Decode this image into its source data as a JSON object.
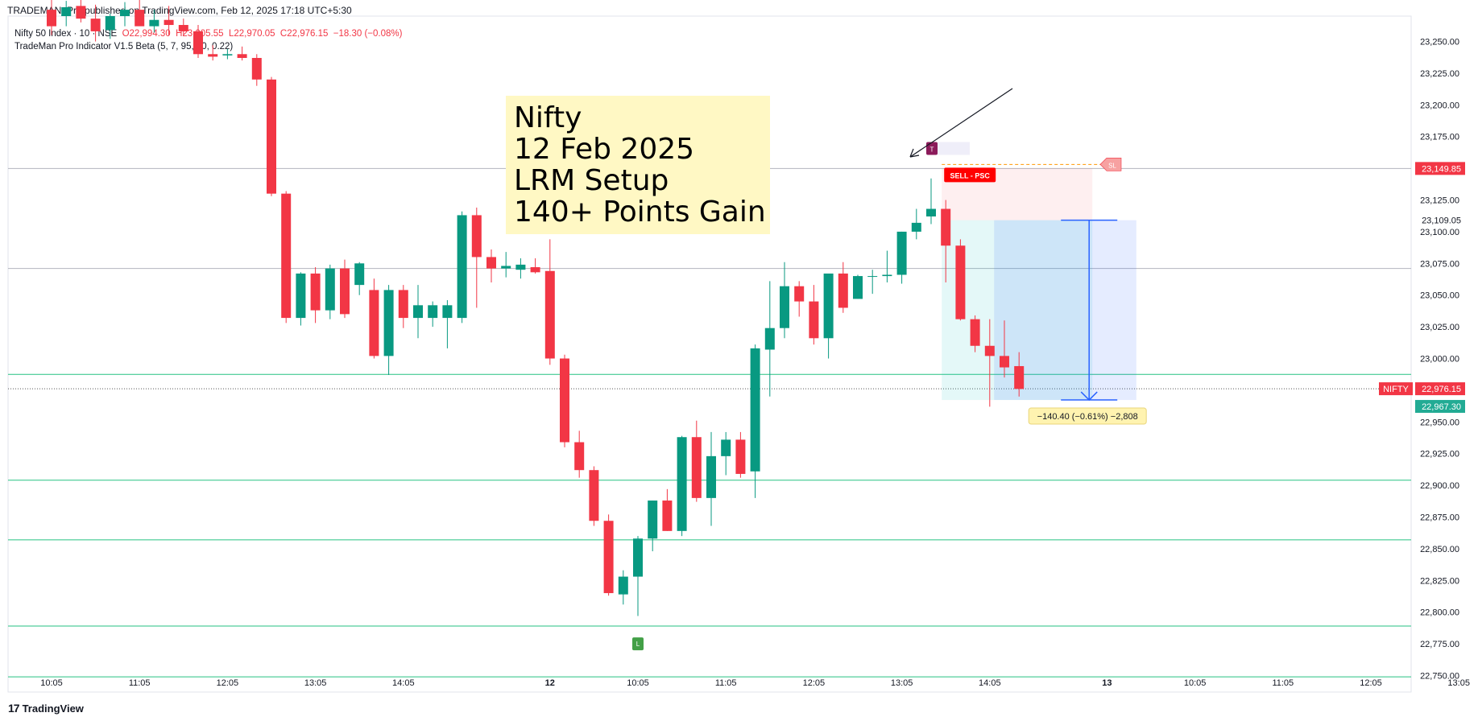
{
  "header": {
    "published": "TRADEMAN_Pro published on TradingView.com, Feb 12, 2025 17:18 UTC+5:30",
    "symbol_line": {
      "name": "Nifty 50 Index · 10 · NSE",
      "open": "O22,994.30",
      "high": "H23,005.55",
      "low": "L22,970.05",
      "close": "C22,976.15",
      "change": "−18.30 (−0.08%)"
    },
    "indicator": "TradeMan Pro Indicator V1.5 Beta (5, 7, 95, 10, 0.22)"
  },
  "annotation": {
    "lines": [
      "Nifty",
      "12 Feb 2025",
      "LRM Setup",
      "140+ Points Gain"
    ]
  },
  "markers": {
    "top_marker": "T",
    "low_marker": "L",
    "sell_label": "SELL - PSC",
    "sl_label": "SL",
    "measure_label": "−140.40 (−0.61%) −2,808"
  },
  "price_labels": {
    "sl_price": "23,149.85",
    "entry_price": "23,109.05",
    "symbol_tag": "NIFTY",
    "last_price": "22,976.15",
    "target_price": "22,967.30"
  },
  "footer": {
    "brand": "TradingView"
  },
  "colors": {
    "up": "#089981",
    "down": "#f23645",
    "grid_green": "#26c281",
    "measure_blue": "#2962ff"
  },
  "chart_data": {
    "type": "candlestick",
    "title": "",
    "yaxis": {
      "range": [
        22737,
        23270
      ],
      "ticks": [
        "23,250.00",
        "23,225.00",
        "23,200.00",
        "23,175.00",
        "23,125.00",
        "23,100.00",
        "23,075.00",
        "23,050.00",
        "23,025.00",
        "23,000.00",
        "22,950.00",
        "22,925.00",
        "22,900.00",
        "22,875.00",
        "22,850.00",
        "22,825.00",
        "22,800.00",
        "22,775.00",
        "22,750.00"
      ],
      "tick_values": [
        23250,
        23225,
        23200,
        23175,
        23125,
        23100,
        23075,
        23050,
        23025,
        23000,
        22950,
        22925,
        22900,
        22875,
        22850,
        22825,
        22800,
        22775,
        22750
      ]
    },
    "xaxis": {
      "ticks": [
        "10:05",
        "11:05",
        "12:05",
        "13:05",
        "14:05",
        "12",
        "10:05",
        "11:05",
        "12:05",
        "13:05",
        "14:05",
        "13",
        "10:05",
        "11:05",
        "12:05",
        "13:05"
      ],
      "tick_index": [
        0,
        6,
        12,
        18,
        24,
        34,
        40,
        46,
        52,
        58,
        64,
        72,
        78,
        84,
        90,
        96
      ]
    },
    "horizontal_levels": {
      "gray": [
        23149.85,
        23071
      ],
      "green": [
        22987.5,
        22904,
        22857,
        22789,
        22749
      ]
    },
    "candles": [
      {
        "o": 23275,
        "h": 23285,
        "l": 23255,
        "c": 23262
      },
      {
        "o": 23270,
        "h": 23282,
        "l": 23262,
        "c": 23277
      },
      {
        "o": 23278,
        "h": 23288,
        "l": 23265,
        "c": 23268
      },
      {
        "o": 23268,
        "h": 23279,
        "l": 23250,
        "c": 23258
      },
      {
        "o": 23259,
        "h": 23272,
        "l": 23252,
        "c": 23270
      },
      {
        "o": 23270,
        "h": 23281,
        "l": 23262,
        "c": 23275
      },
      {
        "o": 23275,
        "h": 23285,
        "l": 23266,
        "c": 23262
      },
      {
        "o": 23262,
        "h": 23275,
        "l": 23257,
        "c": 23267
      },
      {
        "o": 23267,
        "h": 23278,
        "l": 23255,
        "c": 23263
      },
      {
        "o": 23263,
        "h": 23268,
        "l": 23255,
        "c": 23258
      },
      {
        "o": 23258,
        "h": 23263,
        "l": 23237,
        "c": 23240
      },
      {
        "o": 23240,
        "h": 23247,
        "l": 23235,
        "c": 23238
      },
      {
        "o": 23239,
        "h": 23244,
        "l": 23236,
        "c": 23240
      },
      {
        "o": 23240,
        "h": 23246,
        "l": 23235,
        "c": 23237
      },
      {
        "o": 23237,
        "h": 23240,
        "l": 23215,
        "c": 23220
      },
      {
        "o": 23220,
        "h": 23222,
        "l": 23128,
        "c": 23130
      },
      {
        "o": 23130,
        "h": 23132,
        "l": 23028,
        "c": 23032
      },
      {
        "o": 23032,
        "h": 23068,
        "l": 23026,
        "c": 23067
      },
      {
        "o": 23067,
        "h": 23072,
        "l": 23028,
        "c": 23038
      },
      {
        "o": 23038,
        "h": 23074,
        "l": 23031,
        "c": 23071
      },
      {
        "o": 23071,
        "h": 23078,
        "l": 23032,
        "c": 23035
      },
      {
        "o": 23058,
        "h": 23076,
        "l": 23050,
        "c": 23075
      },
      {
        "o": 23054,
        "h": 23063,
        "l": 23000,
        "c": 23002
      },
      {
        "o": 23002,
        "h": 23058,
        "l": 22987,
        "c": 23054
      },
      {
        "o": 23054,
        "h": 23058,
        "l": 23024,
        "c": 23032
      },
      {
        "o": 23032,
        "h": 23058,
        "l": 23016,
        "c": 23042
      },
      {
        "o": 23032,
        "h": 23045,
        "l": 23025,
        "c": 23042
      },
      {
        "o": 23032,
        "h": 23046,
        "l": 23008,
        "c": 23042
      },
      {
        "o": 23032,
        "h": 23116,
        "l": 23028,
        "c": 23113
      },
      {
        "o": 23113,
        "h": 23119,
        "l": 23040,
        "c": 23080
      },
      {
        "o": 23080,
        "h": 23086,
        "l": 23060,
        "c": 23071
      },
      {
        "o": 23071,
        "h": 23084,
        "l": 23064,
        "c": 23073
      },
      {
        "o": 23070,
        "h": 23079,
        "l": 23063,
        "c": 23074
      },
      {
        "o": 23072,
        "h": 23079,
        "l": 23067,
        "c": 23068
      },
      {
        "o": 23069,
        "h": 23094,
        "l": 22995,
        "c": 23000
      },
      {
        "o": 23000,
        "h": 23003,
        "l": 22930,
        "c": 22934
      },
      {
        "o": 22934,
        "h": 22943,
        "l": 22906,
        "c": 22912
      },
      {
        "o": 22912,
        "h": 22915,
        "l": 22868,
        "c": 22872
      },
      {
        "o": 22872,
        "h": 22877,
        "l": 22813,
        "c": 22815
      },
      {
        "o": 22814,
        "h": 22833,
        "l": 22806,
        "c": 22828
      },
      {
        "o": 22828,
        "h": 22860,
        "l": 22797,
        "c": 22858
      },
      {
        "o": 22858,
        "h": 22888,
        "l": 22848,
        "c": 22888
      },
      {
        "o": 22888,
        "h": 22897,
        "l": 22864,
        "c": 22864
      },
      {
        "o": 22864,
        "h": 22939,
        "l": 22860,
        "c": 22938
      },
      {
        "o": 22938,
        "h": 22951,
        "l": 22887,
        "c": 22890
      },
      {
        "o": 22890,
        "h": 22942,
        "l": 22868,
        "c": 22923
      },
      {
        "o": 22923,
        "h": 22942,
        "l": 22908,
        "c": 22936
      },
      {
        "o": 22936,
        "h": 22942,
        "l": 22906,
        "c": 22909
      },
      {
        "o": 22911,
        "h": 23011,
        "l": 22890,
        "c": 23008
      },
      {
        "o": 23007,
        "h": 23061,
        "l": 22970,
        "c": 23024
      },
      {
        "o": 23024,
        "h": 23076,
        "l": 23016,
        "c": 23057
      },
      {
        "o": 23057,
        "h": 23061,
        "l": 23033,
        "c": 23045
      },
      {
        "o": 23045,
        "h": 23058,
        "l": 23011,
        "c": 23016
      },
      {
        "o": 23016,
        "h": 23063,
        "l": 23000,
        "c": 23067
      },
      {
        "o": 23067,
        "h": 23076,
        "l": 23036,
        "c": 23040
      },
      {
        "o": 23047,
        "h": 23066,
        "l": 23047,
        "c": 23065
      },
      {
        "o": 23065,
        "h": 23070,
        "l": 23051,
        "c": 23065
      },
      {
        "o": 23065,
        "h": 23085,
        "l": 23060,
        "c": 23066
      },
      {
        "o": 23066,
        "h": 23100,
        "l": 23059,
        "c": 23100
      },
      {
        "o": 23100,
        "h": 23118,
        "l": 23094,
        "c": 23107
      },
      {
        "o": 23112,
        "h": 23142,
        "l": 23106,
        "c": 23118
      },
      {
        "o": 23118,
        "h": 23125,
        "l": 23060,
        "c": 23089
      },
      {
        "o": 23089,
        "h": 23094,
        "l": 23030,
        "c": 23031
      },
      {
        "o": 23031,
        "h": 23034,
        "l": 23005,
        "c": 23010
      },
      {
        "o": 23010,
        "h": 23031,
        "l": 22962,
        "c": 23002
      },
      {
        "o": 23002,
        "h": 23030,
        "l": 22985,
        "c": 22993
      },
      {
        "o": 22994,
        "h": 23005,
        "l": 22970,
        "c": 22976
      }
    ]
  }
}
